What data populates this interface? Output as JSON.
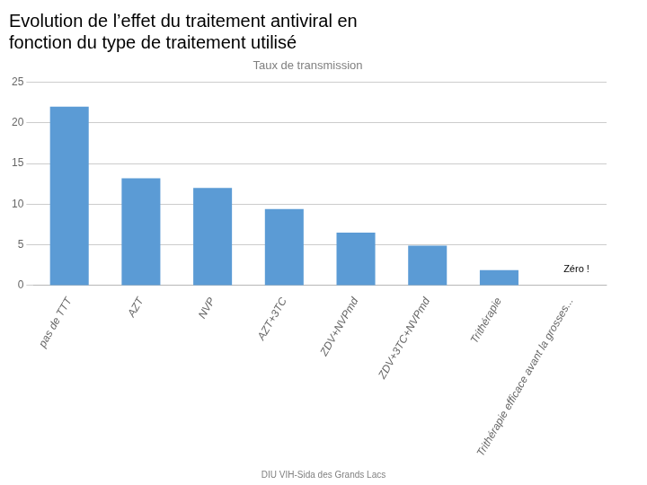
{
  "chart_data": {
    "type": "bar",
    "title": [
      "Evolution de l’effet du traitement antiviral en",
      "fonction du type de traitement utilisé"
    ],
    "subtitle": "Taux de transmission",
    "footer": "DIU VIH-Sida des Grands Lacs",
    "categories": [
      "pas de TTT",
      "AZT",
      "NVP",
      "AZT+3TC",
      "ZDV+NVPmd",
      "ZDV+3TC+NVPmd",
      "Trithérapie",
      "Trithérapie efficace avant la grosses..."
    ],
    "values": [
      22,
      13.2,
      12,
      9.4,
      6.5,
      4.9,
      1.9,
      0
    ],
    "color": "#5B9BD5",
    "ylim": [
      0,
      25
    ],
    "yticks": [
      0,
      5,
      10,
      15,
      20,
      25
    ],
    "grid": true,
    "annotations": [
      {
        "text": "Zéro !",
        "category": "Trithérapie efficace avant la grosses...",
        "y": 2.0
      }
    ]
  }
}
